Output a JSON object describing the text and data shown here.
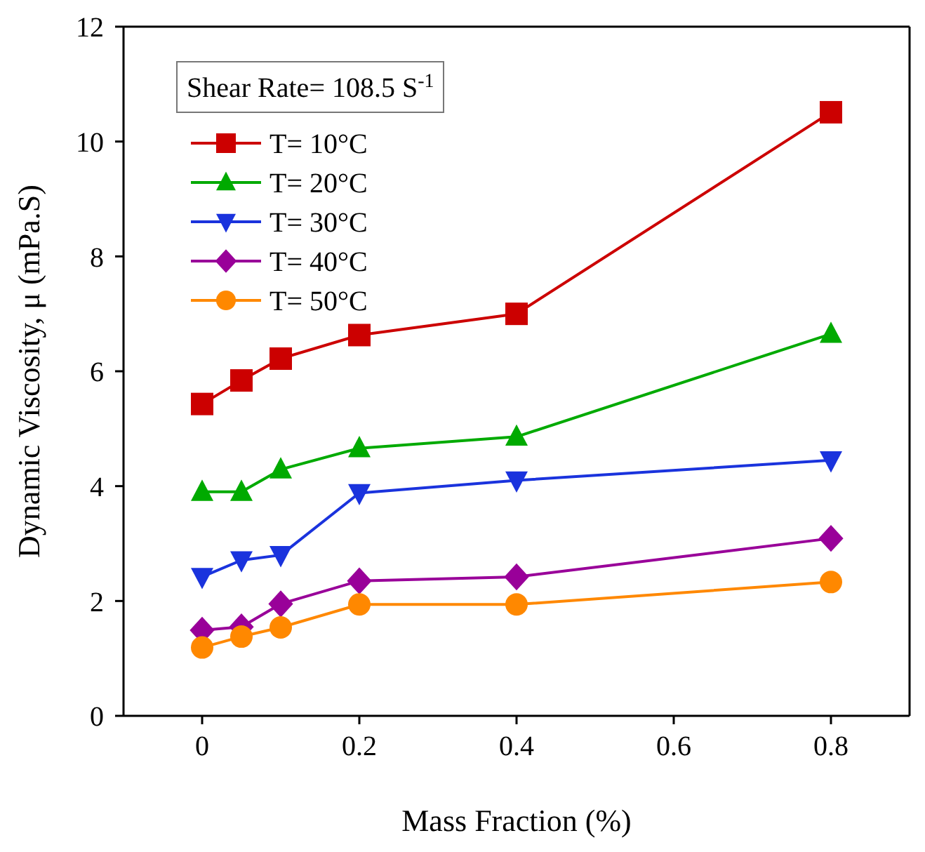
{
  "chart_data": {
    "type": "line",
    "xlabel": "Mass Fraction (%)",
    "ylabel": "Dynamic Viscosity, μ (mPa.S)",
    "legend_title": "Shear Rate= 108.5 S$^{-1}$",
    "x": [
      0,
      0.05,
      0.1,
      0.2,
      0.4,
      0.8
    ],
    "series": [
      {
        "name": "T= 10°C",
        "color": "#cc0000",
        "marker": "square",
        "values": [
          5.43,
          5.84,
          6.22,
          6.63,
          7.0,
          10.51
        ]
      },
      {
        "name": "T= 20°C",
        "color": "#00aa00",
        "marker": "triangle",
        "values": [
          3.9,
          3.9,
          4.29,
          4.66,
          4.86,
          6.65
        ]
      },
      {
        "name": "T= 30°C",
        "color": "#1a33dd",
        "marker": "triangle-down",
        "values": [
          2.42,
          2.71,
          2.8,
          3.88,
          4.1,
          4.45
        ]
      },
      {
        "name": "T= 40°C",
        "color": "#990099",
        "marker": "diamond",
        "values": [
          1.49,
          1.55,
          1.95,
          2.35,
          2.42,
          3.09
        ]
      },
      {
        "name": "T= 50°C",
        "color": "#ff8800",
        "marker": "circle",
        "values": [
          1.19,
          1.38,
          1.54,
          1.94,
          1.94,
          2.33
        ]
      }
    ],
    "xlim": [
      -0.1,
      0.9
    ],
    "xticks": [
      0,
      0.2,
      0.4,
      0.6,
      0.8
    ],
    "ylim": [
      0,
      12
    ],
    "yticks": [
      0,
      2,
      4,
      6,
      8,
      10,
      12
    ],
    "grid": false,
    "legend": "top left",
    "line_style": "solid"
  }
}
